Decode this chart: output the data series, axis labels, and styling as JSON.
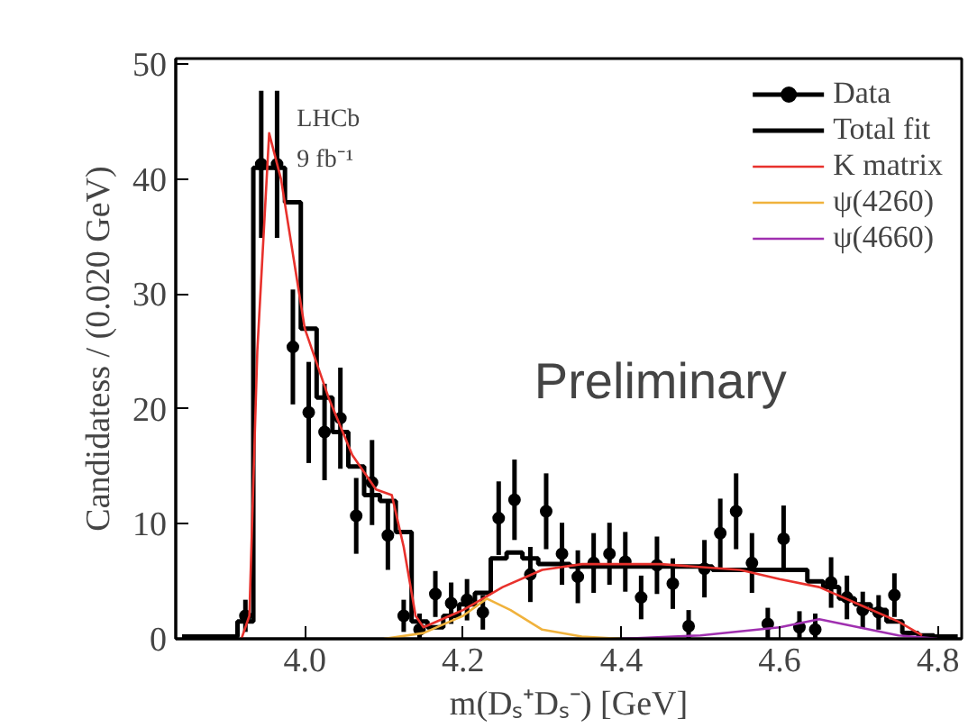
{
  "chart_data": {
    "type": "scatter",
    "xlabel": "m(Dₛ⁺Dₛ⁻) [GeV]",
    "ylabel": "Candidatess / (0.020 GeV)",
    "xlim": [
      3.837,
      4.83
    ],
    "ylim": [
      0,
      50.5
    ],
    "xticks": [
      {
        "value": 4.0,
        "label": "4.0"
      },
      4.2,
      4.4,
      4.6,
      {
        "value": 4.8,
        "label": "4.8"
      }
    ],
    "yticks": [
      0,
      10,
      20,
      30,
      40,
      50
    ],
    "grid": false,
    "legend": "top right",
    "annotations": [
      "LHCb",
      "9 fb⁻¹",
      "Preliminary"
    ],
    "series": [
      {
        "name": "Data",
        "color": "#000000",
        "marker": "circle",
        "x": [
          3.925,
          3.945,
          3.965,
          3.985,
          4.005,
          4.025,
          4.045,
          4.065,
          4.085,
          4.105,
          4.125,
          4.145,
          4.165,
          4.185,
          4.205,
          4.225,
          4.245,
          4.265,
          4.285,
          4.305,
          4.325,
          4.345,
          4.365,
          4.385,
          4.405,
          4.425,
          4.445,
          4.465,
          4.485,
          4.505,
          4.525,
          4.545,
          4.565,
          4.585,
          4.605,
          4.625,
          4.645,
          4.665,
          4.685,
          4.705,
          4.725,
          4.745
        ],
        "values": [
          2,
          41.3,
          41.3,
          25.4,
          19.7,
          18.0,
          19.2,
          10.7,
          13.6,
          9.0,
          2,
          0.8,
          3.9,
          3.1,
          3.4,
          2.3,
          10.5,
          12.1,
          5.6,
          11.1,
          7.4,
          5.4,
          6.6,
          7.4,
          6.7,
          3.6,
          6.4,
          4.8,
          1.1,
          6.1,
          9.2,
          11.1,
          6.6,
          1.3,
          8.7,
          1,
          0.8,
          4.9,
          3.6,
          2.5,
          2.3,
          3.8
        ],
        "errors": [
          1.4,
          6.4,
          6.4,
          5.0,
          4.4,
          4.2,
          4.4,
          3.3,
          3.7,
          3.0,
          1.4,
          1.4,
          2.0,
          1.8,
          1.8,
          1.5,
          3.2,
          3.5,
          2.4,
          3.3,
          2.7,
          2.3,
          2.6,
          2.7,
          2.6,
          1.9,
          2.5,
          2.2,
          1.4,
          2.5,
          3.0,
          3.3,
          2.6,
          1.4,
          2.9,
          1.4,
          1.4,
          2.2,
          1.9,
          1.6,
          1.5,
          1.9
        ]
      },
      {
        "type": "step",
        "name": "Total fit",
        "color": "#000000",
        "x": [
          3.845,
          3.865,
          3.885,
          3.905,
          3.925,
          3.945,
          3.965,
          3.985,
          4.005,
          4.025,
          4.045,
          4.065,
          4.085,
          4.105,
          4.125,
          4.145,
          4.165,
          4.185,
          4.205,
          4.225,
          4.245,
          4.265,
          4.285,
          4.305,
          4.325,
          4.345,
          4.365,
          4.385,
          4.405,
          4.425,
          4.445,
          4.465,
          4.485,
          4.505,
          4.525,
          4.545,
          4.565,
          4.585,
          4.605,
          4.625,
          4.645,
          4.665,
          4.685,
          4.705,
          4.725,
          4.745,
          4.765,
          4.785,
          4.805,
          4.825
        ],
        "values": [
          0.2,
          0.2,
          0.2,
          0.2,
          1.5,
          41,
          41,
          38,
          27,
          21,
          18,
          15,
          12.5,
          12,
          9.3,
          1.5,
          1,
          2,
          3,
          4,
          7,
          7.5,
          7,
          6.5,
          6.5,
          6.3,
          6.3,
          6.3,
          6.3,
          6.3,
          6.3,
          6.3,
          6.3,
          6.3,
          6,
          6,
          6,
          6,
          6,
          6,
          5,
          4.5,
          3.5,
          3,
          2.5,
          1.5,
          0.5,
          0.3,
          0.2,
          0.2
        ]
      },
      {
        "type": "line",
        "name": "K matrix",
        "color": "#e8312c",
        "x": [
          3.92,
          3.93,
          3.94,
          3.955,
          3.97,
          4.0,
          4.03,
          4.06,
          4.09,
          4.11,
          4.125,
          4.14,
          4.15,
          4.2,
          4.25,
          4.3,
          4.35,
          4.45,
          4.55,
          4.6,
          4.65,
          4.7,
          4.75,
          4.78
        ],
        "values": [
          0,
          2,
          25,
          44,
          40,
          27,
          21,
          16,
          13,
          12.5,
          8,
          2,
          1,
          2.5,
          4.5,
          6,
          6.5,
          6.5,
          6,
          5.2,
          4.5,
          3,
          1.5,
          0.3
        ]
      },
      {
        "type": "line",
        "name": "ψ(4260)",
        "color": "#f0b23c",
        "x": [
          4.1,
          4.15,
          4.2,
          4.23,
          4.26,
          4.3,
          4.35,
          4.4
        ],
        "values": [
          0,
          0.5,
          2,
          3.5,
          2.5,
          0.8,
          0.2,
          0
        ]
      },
      {
        "type": "line",
        "name": "ψ(4660)",
        "color": "#a030b0",
        "x": [
          4.4,
          4.5,
          4.6,
          4.65,
          4.7,
          4.75,
          4.8
        ],
        "values": [
          0,
          0.3,
          1,
          1.7,
          1,
          0.3,
          0
        ]
      }
    ]
  }
}
